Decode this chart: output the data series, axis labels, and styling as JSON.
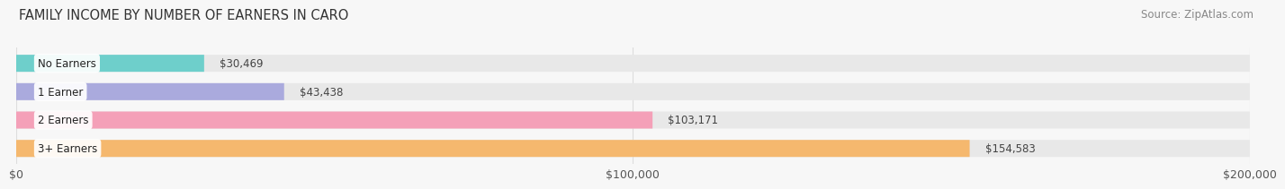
{
  "title": "FAMILY INCOME BY NUMBER OF EARNERS IN CARO",
  "source": "Source: ZipAtlas.com",
  "categories": [
    "No Earners",
    "1 Earner",
    "2 Earners",
    "3+ Earners"
  ],
  "values": [
    30469,
    43438,
    103171,
    154583
  ],
  "labels": [
    "$30,469",
    "$43,438",
    "$103,171",
    "$154,583"
  ],
  "bar_colors": [
    "#6ecfcb",
    "#aaaadd",
    "#f4a0b8",
    "#f5b86e"
  ],
  "bar_bg_color": "#e8e8e8",
  "xlim": [
    0,
    200000
  ],
  "xticks": [
    0,
    100000,
    200000
  ],
  "xtick_labels": [
    "$0",
    "$100,000",
    "$200,000"
  ],
  "title_fontsize": 10.5,
  "source_fontsize": 8.5,
  "label_fontsize": 8.5,
  "category_fontsize": 8.5,
  "bar_height": 0.6,
  "background_color": "#f7f7f7",
  "grid_color": "#dddddd"
}
